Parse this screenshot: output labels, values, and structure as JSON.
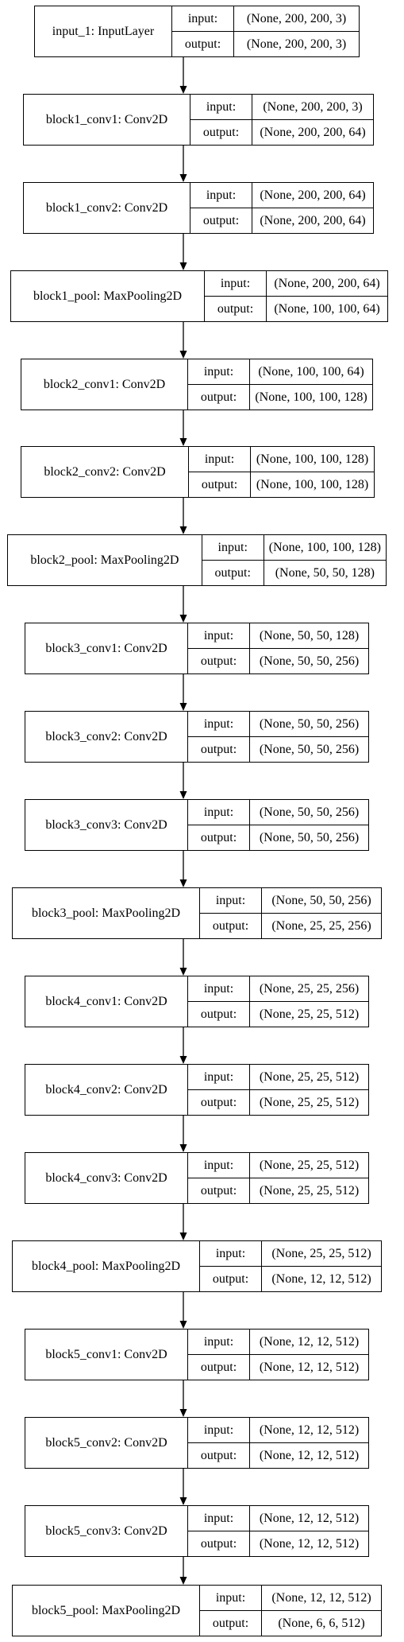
{
  "diagram": {
    "port_labels": {
      "input": "input:",
      "output": "output:"
    },
    "layers": [
      {
        "name": "input_1: InputLayer",
        "input": "(None, 200, 200, 3)",
        "output": "(None, 200, 200, 3)"
      },
      {
        "name": "block1_conv1: Conv2D",
        "input": "(None, 200, 200, 3)",
        "output": "(None, 200, 200, 64)"
      },
      {
        "name": "block1_conv2: Conv2D",
        "input": "(None, 200, 200, 64)",
        "output": "(None, 200, 200, 64)"
      },
      {
        "name": "block1_pool: MaxPooling2D",
        "input": "(None, 200, 200, 64)",
        "output": "(None, 100, 100, 64)"
      },
      {
        "name": "block2_conv1: Conv2D",
        "input": "(None, 100, 100, 64)",
        "output": "(None, 100, 100, 128)"
      },
      {
        "name": "block2_conv2: Conv2D",
        "input": "(None, 100, 100, 128)",
        "output": "(None, 100, 100, 128)"
      },
      {
        "name": "block2_pool: MaxPooling2D",
        "input": "(None, 100, 100, 128)",
        "output": "(None, 50, 50, 128)"
      },
      {
        "name": "block3_conv1: Conv2D",
        "input": "(None, 50, 50, 128)",
        "output": "(None, 50, 50, 256)"
      },
      {
        "name": "block3_conv2: Conv2D",
        "input": "(None, 50, 50, 256)",
        "output": "(None, 50, 50, 256)"
      },
      {
        "name": "block3_conv3: Conv2D",
        "input": "(None, 50, 50, 256)",
        "output": "(None, 50, 50, 256)"
      },
      {
        "name": "block3_pool: MaxPooling2D",
        "input": "(None, 50, 50, 256)",
        "output": "(None, 25, 25, 256)"
      },
      {
        "name": "block4_conv1: Conv2D",
        "input": "(None, 25, 25, 256)",
        "output": "(None, 25, 25, 512)"
      },
      {
        "name": "block4_conv2: Conv2D",
        "input": "(None, 25, 25, 512)",
        "output": "(None, 25, 25, 512)"
      },
      {
        "name": "block4_conv3: Conv2D",
        "input": "(None, 25, 25, 512)",
        "output": "(None, 25, 25, 512)"
      },
      {
        "name": "block4_pool: MaxPooling2D",
        "input": "(None, 25, 25, 512)",
        "output": "(None, 12, 12, 512)"
      },
      {
        "name": "block5_conv1: Conv2D",
        "input": "(None, 12, 12, 512)",
        "output": "(None, 12, 12, 512)"
      },
      {
        "name": "block5_conv2: Conv2D",
        "input": "(None, 12, 12, 512)",
        "output": "(None, 12, 12, 512)"
      },
      {
        "name": "block5_conv3: Conv2D",
        "input": "(None, 12, 12, 512)",
        "output": "(None, 12, 12, 512)"
      },
      {
        "name": "block5_pool: MaxPooling2D",
        "input": "(None, 12, 12, 512)",
        "output": "(None, 6, 6, 512)"
      }
    ]
  }
}
